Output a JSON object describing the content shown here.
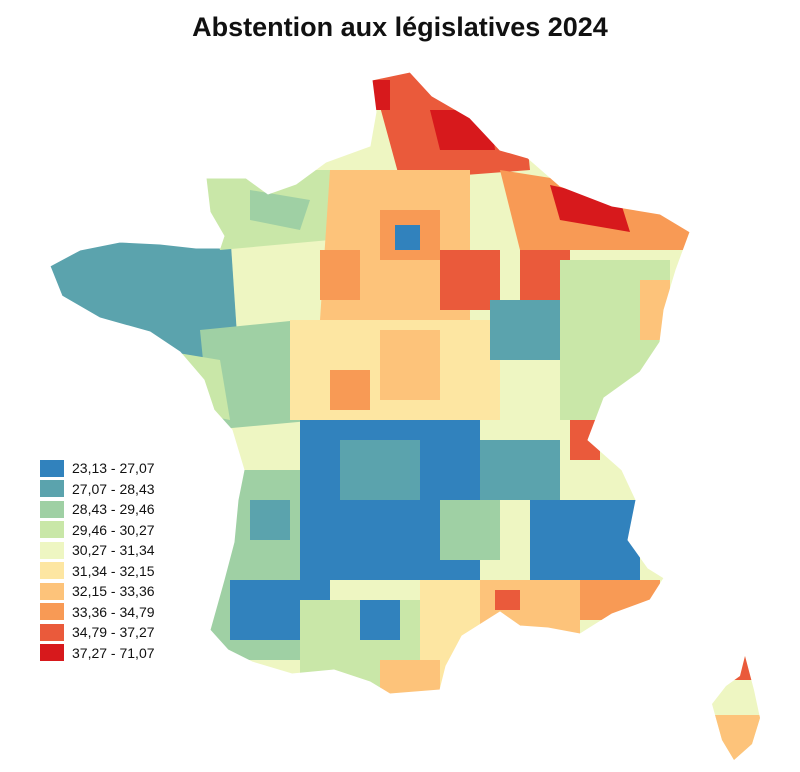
{
  "title": "Abstention aux législatives 2024",
  "legend": [
    {
      "label": "23,13 - 27,07",
      "color": "#3182bd"
    },
    {
      "label": "27,07 - 28,43",
      "color": "#5ba3ad"
    },
    {
      "label": "28,43 - 29,46",
      "color": "#9fd0a4"
    },
    {
      "label": "29,46 - 30,27",
      "color": "#c9e7a8"
    },
    {
      "label": "30,27 - 31,34",
      "color": "#eef6c2"
    },
    {
      "label": "31,34 - 32,15",
      "color": "#fde6a2"
    },
    {
      "label": "32,15 - 33,36",
      "color": "#fdc37a"
    },
    {
      "label": "33,36 - 34,79",
      "color": "#f89a55"
    },
    {
      "label": "34,79 - 37,27",
      "color": "#ea5a3b"
    },
    {
      "label": "37,27 - 71,07",
      "color": "#d7191c"
    }
  ]
}
